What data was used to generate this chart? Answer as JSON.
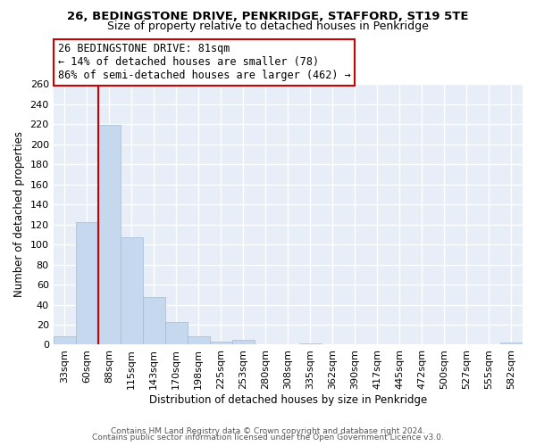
{
  "title1": "26, BEDINGSTONE DRIVE, PENKRIDGE, STAFFORD, ST19 5TE",
  "title2": "Size of property relative to detached houses in Penkridge",
  "xlabel": "Distribution of detached houses by size in Penkridge",
  "ylabel": "Number of detached properties",
  "bar_labels": [
    "33sqm",
    "60sqm",
    "88sqm",
    "115sqm",
    "143sqm",
    "170sqm",
    "198sqm",
    "225sqm",
    "253sqm",
    "280sqm",
    "308sqm",
    "335sqm",
    "362sqm",
    "390sqm",
    "417sqm",
    "445sqm",
    "472sqm",
    "500sqm",
    "527sqm",
    "555sqm",
    "582sqm"
  ],
  "bar_values": [
    8,
    122,
    219,
    107,
    48,
    23,
    8,
    3,
    5,
    0,
    0,
    1,
    0,
    0,
    0,
    0,
    0,
    0,
    0,
    0,
    2
  ],
  "bar_color": "#c5d8ee",
  "bar_edge_color": "#a0bcd8",
  "vline_x": 1.5,
  "vline_color": "#cc0000",
  "ylim": [
    0,
    260
  ],
  "yticks": [
    0,
    20,
    40,
    60,
    80,
    100,
    120,
    140,
    160,
    180,
    200,
    220,
    240,
    260
  ],
  "annotation_text": "26 BEDINGSTONE DRIVE: 81sqm\n← 14% of detached houses are smaller (78)\n86% of semi-detached houses are larger (462) →",
  "annotation_box_color": "#ffffff",
  "annotation_box_edge": "#cc0000",
  "footer1": "Contains HM Land Registry data © Crown copyright and database right 2024.",
  "footer2": "Contains public sector information licensed under the Open Government Licence v3.0.",
  "bg_color": "#ffffff",
  "plot_bg_color": "#e8eef7",
  "grid_color": "#ffffff",
  "title_fontsize": 9.5,
  "subtitle_fontsize": 9.0,
  "axis_fontsize": 8.5,
  "tick_fontsize": 8.0
}
